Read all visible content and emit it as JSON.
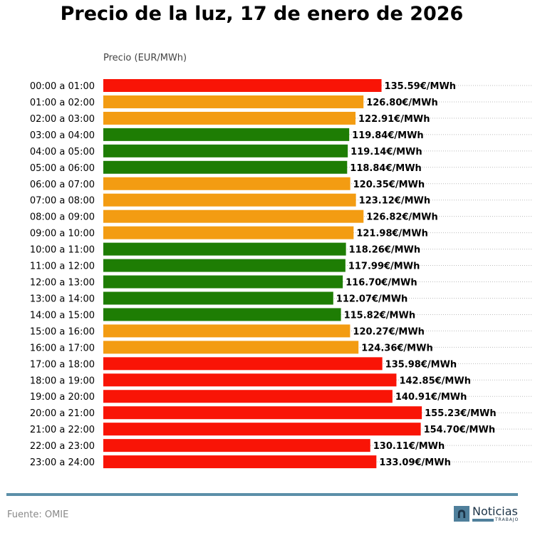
{
  "chart_data": {
    "type": "bar",
    "orientation": "horizontal",
    "title": "Precio de la luz, 17 de enero de 2026",
    "xlabel": "Precio (EUR/MWh)",
    "xlim": [
      0,
      209
    ],
    "grid": "dotted horizontal",
    "value_suffix": "€/MWh",
    "categories": [
      "00:00 a 01:00",
      "01:00 a 02:00",
      "02:00 a 03:00",
      "03:00 a 04:00",
      "04:00 a 05:00",
      "05:00 a 06:00",
      "06:00 a 07:00",
      "07:00 a 08:00",
      "08:00 a 09:00",
      "09:00 a 10:00",
      "10:00 a 11:00",
      "11:00 a 12:00",
      "12:00 a 13:00",
      "13:00 a 14:00",
      "14:00 a 15:00",
      "15:00 a 16:00",
      "16:00 a 17:00",
      "17:00 a 18:00",
      "18:00 a 19:00",
      "19:00 a 20:00",
      "20:00 a 21:00",
      "21:00 a 22:00",
      "22:00 a 23:00",
      "23:00 a 24:00"
    ],
    "values": [
      135.59,
      126.8,
      122.91,
      119.84,
      119.14,
      118.84,
      120.35,
      123.12,
      126.82,
      121.98,
      118.26,
      117.99,
      116.7,
      112.07,
      115.82,
      120.27,
      124.36,
      135.98,
      142.85,
      140.91,
      155.23,
      154.7,
      130.11,
      133.09
    ],
    "levels": [
      "high",
      "mid",
      "mid",
      "low",
      "low",
      "low",
      "mid",
      "mid",
      "mid",
      "mid",
      "low",
      "low",
      "low",
      "low",
      "low",
      "mid",
      "mid",
      "high",
      "high",
      "high",
      "high",
      "high",
      "high",
      "high"
    ],
    "colors": {
      "high": "#f91406",
      "mid": "#f39c12",
      "low": "#1e7d04"
    }
  },
  "footer": {
    "source": "Fuente: OMIE",
    "logo_text": "Noticias",
    "logo_sub": "TRABAJO",
    "logo_mark": "n"
  }
}
